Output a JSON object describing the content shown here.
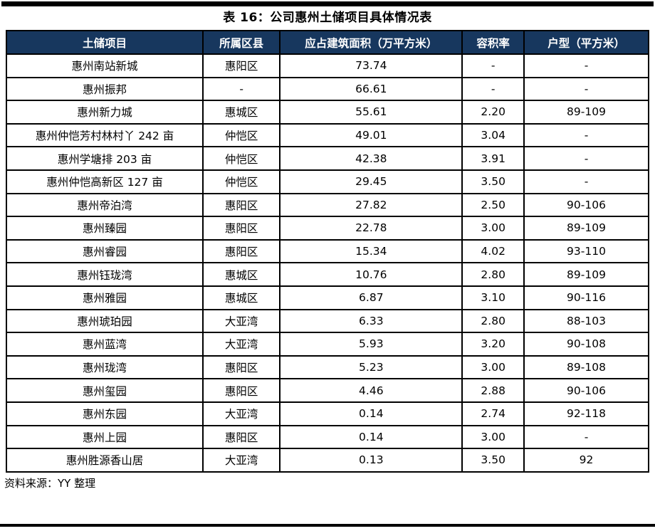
{
  "title": "表 16：公司惠州土储项目具体情况表",
  "colors": {
    "header_bg": "#17375E",
    "header_text": "#ffffff",
    "border": "#000000"
  },
  "table": {
    "columns": [
      {
        "key": "project",
        "label": "土储项目"
      },
      {
        "key": "district",
        "label": "所属区县"
      },
      {
        "key": "area",
        "label": "应占建筑面积（万平方米）"
      },
      {
        "key": "ratio",
        "label": "容积率"
      },
      {
        "key": "unittype",
        "label": "户型（平方米）"
      }
    ],
    "rows": [
      {
        "project": "惠州南站新城",
        "district": "惠阳区",
        "area": "73.74",
        "ratio": "-",
        "unittype": "-"
      },
      {
        "project": "惠州振邦",
        "district": "-",
        "area": "66.61",
        "ratio": "-",
        "unittype": "-"
      },
      {
        "project": "惠州新力城",
        "district": "惠城区",
        "area": "55.61",
        "ratio": "2.20",
        "unittype": "89-109"
      },
      {
        "project": "惠州仲恺芳村林村丫 242 亩",
        "district": "仲恺区",
        "area": "49.01",
        "ratio": "3.04",
        "unittype": "-"
      },
      {
        "project": "惠州学塘排 203 亩",
        "district": "仲恺区",
        "area": "42.38",
        "ratio": "3.91",
        "unittype": "-"
      },
      {
        "project": "惠州仲恺高新区 127 亩",
        "district": "仲恺区",
        "area": "29.45",
        "ratio": "3.50",
        "unittype": "-"
      },
      {
        "project": "惠州帝泊湾",
        "district": "惠阳区",
        "area": "27.82",
        "ratio": "2.50",
        "unittype": "90-106"
      },
      {
        "project": "惠州臻园",
        "district": "惠阳区",
        "area": "22.78",
        "ratio": "3.00",
        "unittype": "89-109"
      },
      {
        "project": "惠州睿园",
        "district": "惠阳区",
        "area": "15.34",
        "ratio": "4.02",
        "unittype": "93-110"
      },
      {
        "project": "惠州钰珑湾",
        "district": "惠城区",
        "area": "10.76",
        "ratio": "2.80",
        "unittype": "89-109"
      },
      {
        "project": "惠州雅园",
        "district": "惠城区",
        "area": "6.87",
        "ratio": "3.10",
        "unittype": "90-116"
      },
      {
        "project": "惠州琥珀园",
        "district": "大亚湾",
        "area": "6.33",
        "ratio": "2.80",
        "unittype": "88-103"
      },
      {
        "project": "惠州蓝湾",
        "district": "大亚湾",
        "area": "5.93",
        "ratio": "3.20",
        "unittype": "90-108"
      },
      {
        "project": "惠州珑湾",
        "district": "惠阳区",
        "area": "5.23",
        "ratio": "3.00",
        "unittype": "89-108"
      },
      {
        "project": "惠州玺园",
        "district": "惠阳区",
        "area": "4.46",
        "ratio": "2.88",
        "unittype": "90-106"
      },
      {
        "project": "惠州东园",
        "district": "大亚湾",
        "area": "0.14",
        "ratio": "2.74",
        "unittype": "92-118"
      },
      {
        "project": "惠州上园",
        "district": "惠阳区",
        "area": "0.14",
        "ratio": "3.00",
        "unittype": "-"
      },
      {
        "project": "惠州胜源香山居",
        "district": "大亚湾",
        "area": "0.13",
        "ratio": "3.50",
        "unittype": "92"
      }
    ]
  },
  "footer": {
    "source": "资料来源：YY 整理"
  }
}
